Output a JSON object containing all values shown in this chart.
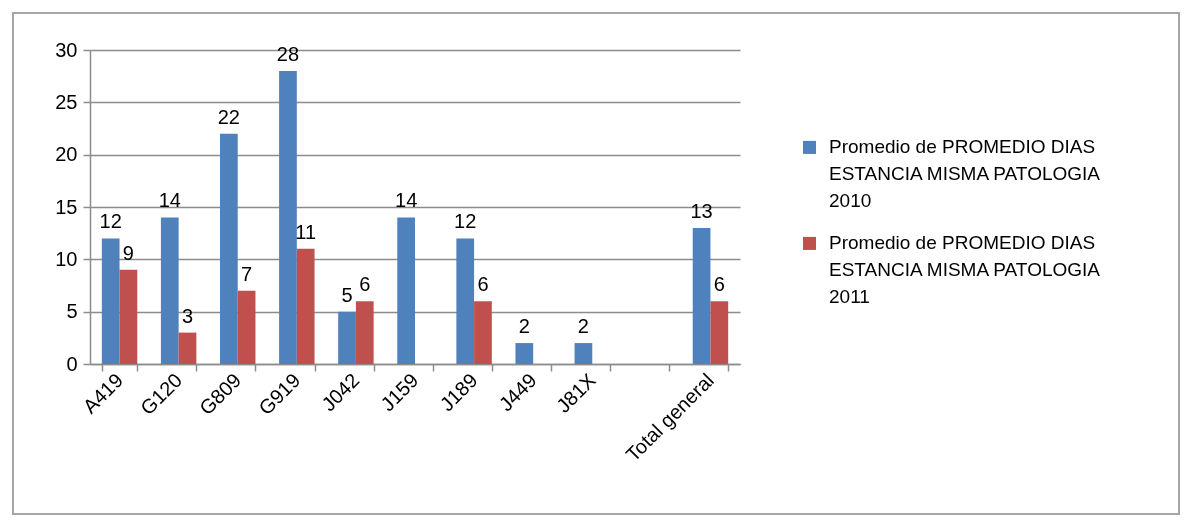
{
  "chart_data": {
    "type": "bar",
    "categories": [
      "A419",
      "G120",
      "G809",
      "G919",
      "J042",
      "J159",
      "J189",
      "J449",
      "J81X",
      null,
      "Total general"
    ],
    "series": [
      {
        "name": "Promedio de PROMEDIO DIAS ESTANCIA MISMA PATOLOGIA 2010",
        "color": "#4f81bd",
        "values": [
          12,
          14,
          22,
          28,
          5,
          14,
          12,
          2,
          2,
          null,
          13
        ]
      },
      {
        "name": "Promedio de PROMEDIO DIAS ESTANCIA MISMA PATOLOGIA 2011",
        "color": "#c0504d",
        "values": [
          9,
          3,
          7,
          11,
          6,
          null,
          6,
          null,
          null,
          null,
          6
        ]
      }
    ],
    "ylim": [
      0,
      30
    ],
    "yticks": [
      0,
      5,
      10,
      15,
      20,
      25,
      30
    ],
    "grid": "y",
    "data_labels": true,
    "legend": "right"
  }
}
